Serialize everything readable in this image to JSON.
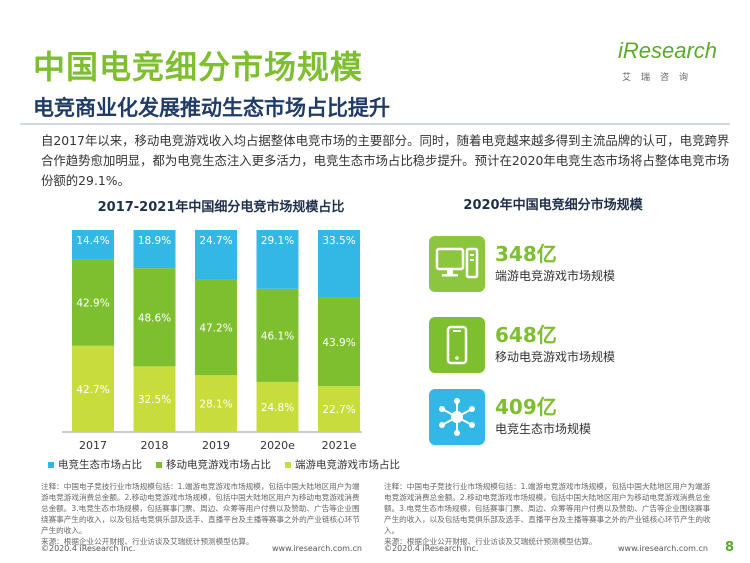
{
  "page": {
    "title": "中国电竞细分市场规模",
    "subtitle": "电竞商业化发展推动生态市场占比提升",
    "intro": "自2017年以来，移动电竞游戏收入均占据整体电竞市场的主要部分。同时，随着电竞越来越多得到主流品牌的认可，电竞跨界合作趋势愈加明显，都为电竞生态注入更多活力，电竞生态市场占比稳步提升。预计在2020年电竞生态市场将占整体电竞市场份额的29.1%。",
    "logo": {
      "word": "iResearch",
      "sub": "艾瑞咨询"
    },
    "page_number": "8"
  },
  "colors": {
    "ecosystem": "#33b8e6",
    "mobile": "#7dbf2e",
    "pc": "#c8dc3c",
    "title_green": "#7dbf2e",
    "navy": "#1f3b66"
  },
  "chart_data": {
    "type": "bar",
    "stacked": true,
    "percent": true,
    "title": "2017-2021年中国细分电竞市场规模占比",
    "categories": [
      "2017",
      "2018",
      "2019",
      "2020e",
      "2021e"
    ],
    "series": [
      {
        "name": "端游电竞游戏市场占比",
        "values": [
          42.7,
          32.5,
          28.1,
          24.8,
          22.7
        ],
        "color": "#c8dc3c"
      },
      {
        "name": "移动电竞游戏市场占比",
        "values": [
          42.9,
          48.6,
          47.2,
          46.1,
          43.9
        ],
        "color": "#7dbf2e"
      },
      {
        "name": "电竞生态市场占比",
        "values": [
          14.4,
          18.9,
          24.7,
          29.1,
          33.5
        ],
        "color": "#33b8e6"
      }
    ],
    "labels": [
      [
        "42.7%",
        "32.5%",
        "28.1%",
        "24.8%",
        "22.7%"
      ],
      [
        "42.9%",
        "48.6%",
        "47.2%",
        "46.1%",
        "43.9%"
      ],
      [
        "14.4%",
        "18.9%",
        "24.7%",
        "29.1%",
        "33.5%"
      ]
    ],
    "legend_order": [
      "电竞生态市场占比",
      "移动电竞游戏市场占比",
      "端游电竞游戏市场占比"
    ],
    "ylim": [
      0,
      100
    ]
  },
  "right_panel": {
    "title": "2020年中国电竞细分市场规模",
    "stats": [
      {
        "value": "348亿",
        "label": "端游电竞游戏市场规模",
        "icon": "desktop-computer-icon"
      },
      {
        "value": "648亿",
        "label": "移动电竞游戏市场规模",
        "icon": "mobile-phone-icon"
      },
      {
        "value": "409亿",
        "label": "电竞生态市场规模",
        "icon": "network-hub-icon"
      }
    ]
  },
  "notes": {
    "left": "注释：中国电子竞技行业市场规模包括：1.端游电竞游戏市场规模，包括中国大陆地区用户为端游电竞游戏消费总金额。2.移动电竞游戏市场规模，包括中国大陆地区用户为移动电竞游戏消费总金额。3.电竞生态市场规模，包括赛事门票、周边、众筹等用户付费以及赞助、广告等企业围绕赛事产生的收入，以及包括电竞俱乐部及选手、直播平台及主播等赛事之外的产业链核心环节产生的收入。",
    "left_source": "来源：根据企业公开财报、行业访谈及艾瑞统计预测模型估算。",
    "right": "注释：中国电子竞技行业市场规模包括：1.端游电竞游戏市场规模，包括中国大陆地区用户为端游电竞游戏消费总金额。2.移动电竞游戏市场规模，包括中国大陆地区用户为移动电竞游戏消费总金额。3.电竞生态市场规模，包括赛事门票、周边、众筹等用户付费以及赞助、广告等企业围绕赛事产生的收入，以及包括电竞俱乐部及选手、直播平台及主播等赛事之外的产业链核心环节产生的收入。",
    "right_source": "来源：根据企业公开财报、行业访谈及艾瑞统计预测模型估算。"
  },
  "footer": {
    "left_copyright": "©2020.4 iResearch Inc.",
    "left_url": "www.iresearch.com.cn",
    "right_copyright": "©2020.4 iResearch Inc.",
    "right_url": "www.iresearch.com.cn"
  }
}
